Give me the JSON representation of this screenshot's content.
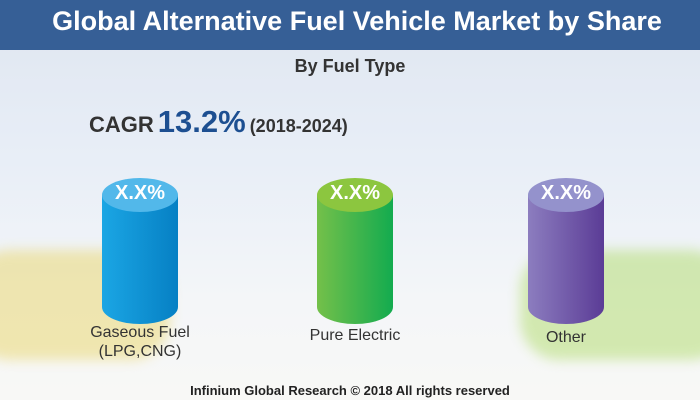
{
  "header": {
    "title": "Global Alternative Fuel Vehicle Market by Share"
  },
  "subtitle": "By Fuel Type",
  "cagr": {
    "label": "CAGR",
    "value": "13.2%",
    "period": "(2018-2024)"
  },
  "chart_data": {
    "type": "bar",
    "title": "Global Alternative Fuel Vehicle Market by Share",
    "subtitle": "By Fuel Type",
    "categories": [
      "Gaseous Fuel (LPG,CNG)",
      "Pure Electric",
      "Other"
    ],
    "category_lines": [
      [
        "Gaseous Fuel",
        "(LPG,CNG)"
      ],
      [
        "Pure Electric"
      ],
      [
        "Other"
      ]
    ],
    "data_labels": [
      "X.X%",
      "X.X%",
      "X.X%"
    ],
    "colors": {
      "top": [
        "#52b8ea",
        "#8cc63f",
        "#9492cc"
      ],
      "side_light": [
        "#1ba6e4",
        "#74c04a",
        "#8c7dbf"
      ],
      "side_dark": [
        "#0680c4",
        "#13ab4f",
        "#5b3c96"
      ]
    }
  },
  "footer": "Infinium Global Research © 2018 All rights reserved",
  "colors": {
    "header": "#365f96",
    "cagr_value": "#1d4f91"
  }
}
